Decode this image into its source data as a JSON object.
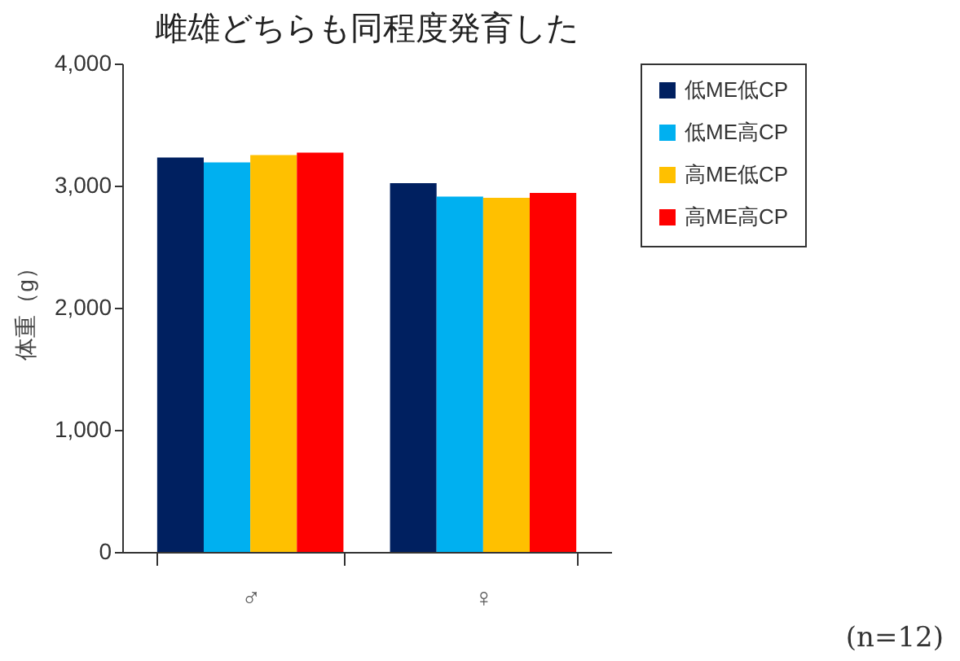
{
  "chart_data": {
    "type": "bar",
    "title": "雌雄どちらも同程度発育した",
    "ylabel": "体重（g）",
    "categories": [
      "♂",
      "♀"
    ],
    "series": [
      {
        "name": "低ME低CP",
        "color": "#002060",
        "values": [
          3230,
          3020
        ]
      },
      {
        "name": "低ME高CP",
        "color": "#00b0f0",
        "values": [
          3190,
          2910
        ]
      },
      {
        "name": "高ME低CP",
        "color": "#ffc000",
        "values": [
          3250,
          2900
        ]
      },
      {
        "name": "高ME高CP",
        "color": "#ff0000",
        "values": [
          3270,
          2940
        ]
      }
    ],
    "ylim": [
      0,
      4000
    ],
    "yticks": [
      {
        "value": 0,
        "label": "0"
      },
      {
        "value": 1000,
        "label": "1,000"
      },
      {
        "value": 2000,
        "label": "2,000"
      },
      {
        "value": 3000,
        "label": "3,000"
      },
      {
        "value": 4000,
        "label": "4,000"
      }
    ],
    "legend": "right",
    "annotations": [
      "(n=12)"
    ]
  }
}
